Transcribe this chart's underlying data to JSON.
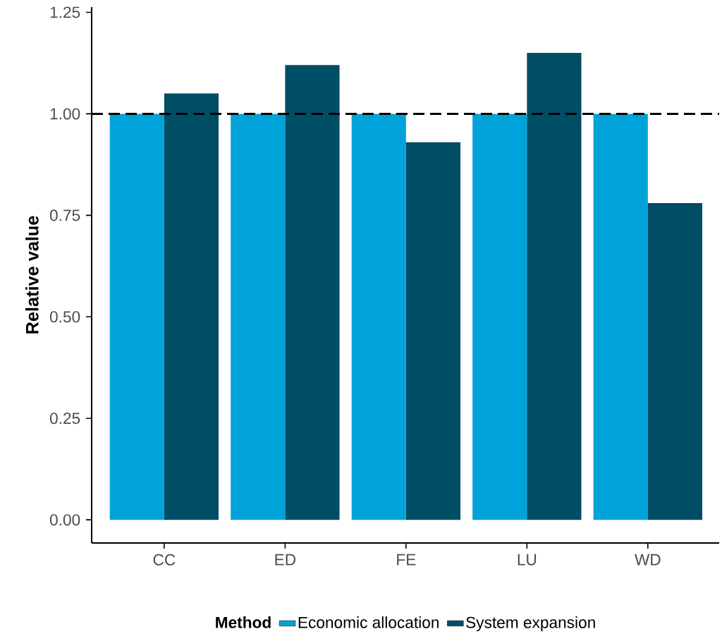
{
  "chart_data": {
    "type": "bar",
    "ylabel": "Relative value",
    "legend_title": "Method",
    "legend": "bottom",
    "grid": false,
    "categories": [
      "CC",
      "ED",
      "FE",
      "LU",
      "WD"
    ],
    "series": [
      {
        "name": "Economic allocation",
        "color": "#00a3d9",
        "values": [
          1.0,
          1.0,
          1.0,
          1.0,
          1.0
        ]
      },
      {
        "name": "System expansion",
        "color": "#004d66",
        "values": [
          1.05,
          1.12,
          0.93,
          1.15,
          0.78
        ]
      }
    ],
    "ylim": [
      -0.057,
      1.263
    ],
    "yticks": [
      {
        "value": 0,
        "label": "0.00"
      },
      {
        "value": 0.25,
        "label": "0.25"
      },
      {
        "value": 0.5,
        "label": "0.50"
      },
      {
        "value": 0.75,
        "label": "0.75"
      },
      {
        "value": 1.0,
        "label": "1.00"
      },
      {
        "value": 1.25,
        "label": "1.25"
      }
    ],
    "ref_lines": [
      {
        "axis": "y",
        "value": 1.0,
        "color": "#000000",
        "line_style": "dashed"
      }
    ]
  }
}
